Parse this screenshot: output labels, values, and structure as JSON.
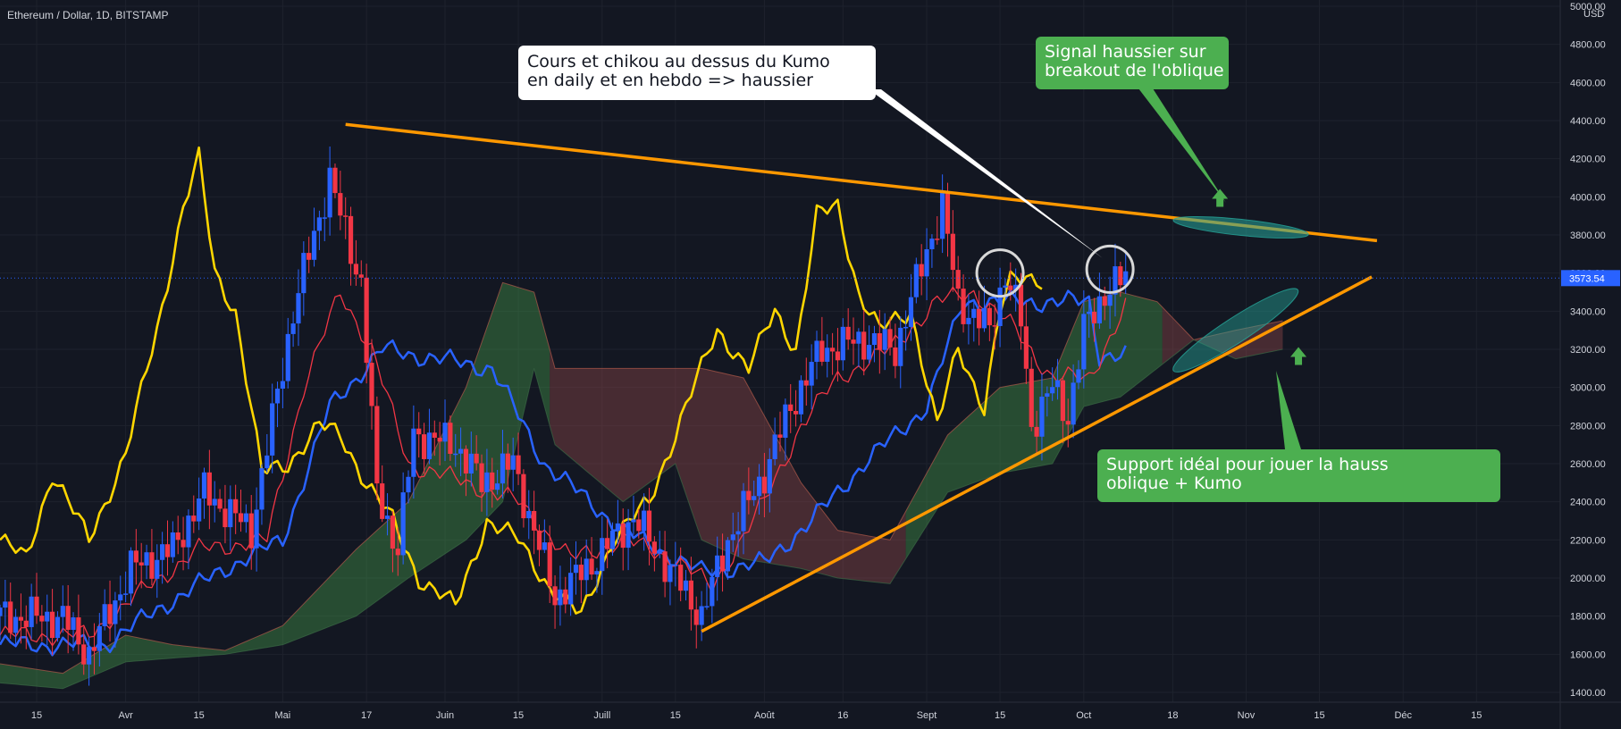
{
  "header": {
    "title": "Ethereum / Dollar, 1D, BITSTAMP"
  },
  "annotations": {
    "kumo_note": {
      "line1": "Cours et chikou au dessus du Kumo",
      "line2": "en daily et en hebdo => haussier"
    },
    "signal_note": {
      "line1": "Signal haussier sur",
      "line2": "breakout de l'oblique"
    },
    "support_note": {
      "line1": "Support idéal pour jouer la hauss",
      "line2": "oblique + Kumo"
    }
  },
  "colors": {
    "background": "#131722",
    "grid": "#1e222d",
    "axis_text": "#d1d4dc",
    "candle_up": "#2962ff",
    "candle_down": "#f23645",
    "tenkan": "#f23645",
    "kijun": "#2962ff",
    "chikou": "#ffd600",
    "trendline": "#ff9800",
    "kumo_bull": "#4caf50",
    "kumo_bear": "#a85050",
    "note_green": "#4caf50",
    "price_tag": "#2962ff"
  },
  "chart_data": {
    "type": "candlestick",
    "title": "Ethereum / Dollar, 1D, BITSTAMP",
    "xlabel": "",
    "ylabel": "",
    "unit_label": "USD",
    "ylim": [
      1300,
      5000
    ],
    "grid": true,
    "y_ticks": [
      1400,
      1600,
      1800,
      2000,
      2200,
      2400,
      2600,
      2800,
      3000,
      3200,
      3400,
      3600,
      3800,
      4000,
      4200,
      4400,
      4600,
      4800,
      5000
    ],
    "y_tick_labels": [
      "1400.00",
      "1600.00",
      "1800.00",
      "2000.00",
      "2200.00",
      "2400.00",
      "2600.00",
      "2800.00",
      "3000.00",
      "3200.00",
      "3400.00",
      "3600.00",
      "3800.00",
      "4000.00",
      "4200.00",
      "4400.00",
      "4600.00",
      "4800.00",
      "5000.00"
    ],
    "x_range": [
      "2021-03-08",
      "2021-12-31"
    ],
    "x_ticks": [
      {
        "date": "2021-03-15",
        "label": "15"
      },
      {
        "date": "2021-04-01",
        "label": "Avr"
      },
      {
        "date": "2021-04-15",
        "label": "15"
      },
      {
        "date": "2021-05-01",
        "label": "Mai"
      },
      {
        "date": "2021-05-17",
        "label": "17"
      },
      {
        "date": "2021-06-01",
        "label": "Juin"
      },
      {
        "date": "2021-06-15",
        "label": "15"
      },
      {
        "date": "2021-07-01",
        "label": "Juill"
      },
      {
        "date": "2021-07-15",
        "label": "15"
      },
      {
        "date": "2021-08-01",
        "label": "Août"
      },
      {
        "date": "2021-08-16",
        "label": "16"
      },
      {
        "date": "2021-09-01",
        "label": "Sept"
      },
      {
        "date": "2021-09-15",
        "label": "15"
      },
      {
        "date": "2021-10-01",
        "label": "Oct"
      },
      {
        "date": "2021-10-18",
        "label": "18"
      },
      {
        "date": "2021-11-01",
        "label": "Nov"
      },
      {
        "date": "2021-11-15",
        "label": "15"
      },
      {
        "date": "2021-12-01",
        "label": "Déc"
      },
      {
        "date": "2021-12-15",
        "label": "15"
      }
    ],
    "last_price": 3573.54,
    "last_price_label": "3573.54",
    "price_anchors": [
      {
        "date": "2021-03-08",
        "close": 1800
      },
      {
        "date": "2021-03-20",
        "close": 1790
      },
      {
        "date": "2021-03-25",
        "close": 1600
      },
      {
        "date": "2021-04-02",
        "close": 2050
      },
      {
        "date": "2021-04-10",
        "close": 2150
      },
      {
        "date": "2021-04-16",
        "close": 2450
      },
      {
        "date": "2021-04-25",
        "close": 2250
      },
      {
        "date": "2021-05-03",
        "close": 3400
      },
      {
        "date": "2021-05-10",
        "close": 4100
      },
      {
        "date": "2021-05-12",
        "close": 3900
      },
      {
        "date": "2021-05-16",
        "close": 3550
      },
      {
        "date": "2021-05-19",
        "close": 2450
      },
      {
        "date": "2021-05-23",
        "close": 2150
      },
      {
        "date": "2021-05-26",
        "close": 2750
      },
      {
        "date": "2021-06-03",
        "close": 2700
      },
      {
        "date": "2021-06-08",
        "close": 2500
      },
      {
        "date": "2021-06-14",
        "close": 2600
      },
      {
        "date": "2021-06-22",
        "close": 1900
      },
      {
        "date": "2021-06-28",
        "close": 2050
      },
      {
        "date": "2021-07-07",
        "close": 2320
      },
      {
        "date": "2021-07-15",
        "close": 2000
      },
      {
        "date": "2021-07-20",
        "close": 1800
      },
      {
        "date": "2021-07-25",
        "close": 2200
      },
      {
        "date": "2021-08-01",
        "close": 2550
      },
      {
        "date": "2021-08-06",
        "close": 2900
      },
      {
        "date": "2021-08-12",
        "close": 3200
      },
      {
        "date": "2021-08-20",
        "close": 3250
      },
      {
        "date": "2021-08-26",
        "close": 3200
      },
      {
        "date": "2021-09-02",
        "close": 3800
      },
      {
        "date": "2021-09-04",
        "close": 3950
      },
      {
        "date": "2021-09-07",
        "close": 3450
      },
      {
        "date": "2021-09-13",
        "close": 3300
      },
      {
        "date": "2021-09-16",
        "close": 3600
      },
      {
        "date": "2021-09-19",
        "close": 3350
      },
      {
        "date": "2021-09-21",
        "close": 2800
      },
      {
        "date": "2021-09-25",
        "close": 3000
      },
      {
        "date": "2021-09-28",
        "close": 2850
      },
      {
        "date": "2021-10-01",
        "close": 3300
      },
      {
        "date": "2021-10-05",
        "close": 3500
      },
      {
        "date": "2021-10-09",
        "close": 3574
      }
    ],
    "chikou_anchors": [
      {
        "date": "2021-03-08",
        "v": 2200
      },
      {
        "date": "2021-03-13",
        "v": 2100
      },
      {
        "date": "2021-03-18",
        "v": 2550
      },
      {
        "date": "2021-03-25",
        "v": 2200
      },
      {
        "date": "2021-04-01",
        "v": 2650
      },
      {
        "date": "2021-04-07",
        "v": 3300
      },
      {
        "date": "2021-04-12",
        "v": 3950
      },
      {
        "date": "2021-04-15",
        "v": 4200
      },
      {
        "date": "2021-04-18",
        "v": 3600
      },
      {
        "date": "2021-04-22",
        "v": 3400
      },
      {
        "date": "2021-04-27",
        "v": 2550
      },
      {
        "date": "2021-05-02",
        "v": 2600
      },
      {
        "date": "2021-05-08",
        "v": 2800
      },
      {
        "date": "2021-05-12",
        "v": 2750
      },
      {
        "date": "2021-05-17",
        "v": 2500
      },
      {
        "date": "2021-05-22",
        "v": 2300
      },
      {
        "date": "2021-05-27",
        "v": 2000
      },
      {
        "date": "2021-06-03",
        "v": 1850
      },
      {
        "date": "2021-06-09",
        "v": 2300
      },
      {
        "date": "2021-06-15",
        "v": 2200
      },
      {
        "date": "2021-06-21",
        "v": 1950
      },
      {
        "date": "2021-06-27",
        "v": 1800
      },
      {
        "date": "2021-07-03",
        "v": 2200
      },
      {
        "date": "2021-07-10",
        "v": 2400
      },
      {
        "date": "2021-07-17",
        "v": 2900
      },
      {
        "date": "2021-07-23",
        "v": 3300
      },
      {
        "date": "2021-07-29",
        "v": 3100
      },
      {
        "date": "2021-08-03",
        "v": 3400
      },
      {
        "date": "2021-08-07",
        "v": 3200
      },
      {
        "date": "2021-08-11",
        "v": 3900
      },
      {
        "date": "2021-08-15",
        "v": 3950
      },
      {
        "date": "2021-08-19",
        "v": 3500
      },
      {
        "date": "2021-08-23",
        "v": 3300
      },
      {
        "date": "2021-08-29",
        "v": 3400
      },
      {
        "date": "2021-09-03",
        "v": 2800
      },
      {
        "date": "2021-09-07",
        "v": 3200
      },
      {
        "date": "2021-09-12",
        "v": 2900
      },
      {
        "date": "2021-09-15",
        "v": 3400
      },
      {
        "date": "2021-09-17",
        "v": 3550
      },
      {
        "date": "2021-09-20",
        "v": 3580
      },
      {
        "date": "2021-09-23",
        "v": 3570
      }
    ],
    "tenkan_anchors": [
      {
        "date": "2021-03-08",
        "v": 1700
      },
      {
        "date": "2021-03-25",
        "v": 1700
      },
      {
        "date": "2021-04-05",
        "v": 1950
      },
      {
        "date": "2021-04-15",
        "v": 2150
      },
      {
        "date": "2021-04-28",
        "v": 2200
      },
      {
        "date": "2021-05-05",
        "v": 3000
      },
      {
        "date": "2021-05-12",
        "v": 3500
      },
      {
        "date": "2021-05-18",
        "v": 3200
      },
      {
        "date": "2021-05-25",
        "v": 2600
      },
      {
        "date": "2021-06-05",
        "v": 2500
      },
      {
        "date": "2021-06-15",
        "v": 2400
      },
      {
        "date": "2021-06-25",
        "v": 2100
      },
      {
        "date": "2021-07-05",
        "v": 2200
      },
      {
        "date": "2021-07-15",
        "v": 2100
      },
      {
        "date": "2021-07-22",
        "v": 1950
      },
      {
        "date": "2021-08-01",
        "v": 2400
      },
      {
        "date": "2021-08-08",
        "v": 2800
      },
      {
        "date": "2021-08-15",
        "v": 3050
      },
      {
        "date": "2021-08-25",
        "v": 3200
      },
      {
        "date": "2021-09-03",
        "v": 3450
      },
      {
        "date": "2021-09-10",
        "v": 3500
      },
      {
        "date": "2021-09-18",
        "v": 3300
      },
      {
        "date": "2021-09-25",
        "v": 3050
      },
      {
        "date": "2021-10-02",
        "v": 3050
      },
      {
        "date": "2021-10-09",
        "v": 3420
      }
    ],
    "kijun_anchors": [
      {
        "date": "2021-03-08",
        "v": 1650
      },
      {
        "date": "2021-03-28",
        "v": 1650
      },
      {
        "date": "2021-04-08",
        "v": 1850
      },
      {
        "date": "2021-04-20",
        "v": 2050
      },
      {
        "date": "2021-05-01",
        "v": 2200
      },
      {
        "date": "2021-05-10",
        "v": 2900
      },
      {
        "date": "2021-05-20",
        "v": 3200
      },
      {
        "date": "2021-06-10",
        "v": 3100
      },
      {
        "date": "2021-06-20",
        "v": 2600
      },
      {
        "date": "2021-07-05",
        "v": 2250
      },
      {
        "date": "2021-07-20",
        "v": 2030
      },
      {
        "date": "2021-08-01",
        "v": 2080
      },
      {
        "date": "2021-08-10",
        "v": 2300
      },
      {
        "date": "2021-08-20",
        "v": 2600
      },
      {
        "date": "2021-09-01",
        "v": 2900
      },
      {
        "date": "2021-09-08",
        "v": 3450
      },
      {
        "date": "2021-09-22",
        "v": 3450
      },
      {
        "date": "2021-10-02",
        "v": 3450
      },
      {
        "date": "2021-10-04",
        "v": 3170
      },
      {
        "date": "2021-10-09",
        "v": 3170
      }
    ],
    "kumo_top_anchors": [
      {
        "date": "2021-03-08",
        "v": 1550
      },
      {
        "date": "2021-03-20",
        "v": 1500
      },
      {
        "date": "2021-04-01",
        "v": 1700
      },
      {
        "date": "2021-04-10",
        "v": 1650
      },
      {
        "date": "2021-04-20",
        "v": 1620
      },
      {
        "date": "2021-05-01",
        "v": 1750
      },
      {
        "date": "2021-05-15",
        "v": 2150
      },
      {
        "date": "2021-05-25",
        "v": 2400
      },
      {
        "date": "2021-06-05",
        "v": 3000
      },
      {
        "date": "2021-06-12",
        "v": 3550
      },
      {
        "date": "2021-06-18",
        "v": 3500
      },
      {
        "date": "2021-06-22",
        "v": 3100
      },
      {
        "date": "2021-07-05",
        "v": 3100
      },
      {
        "date": "2021-07-20",
        "v": 3100
      },
      {
        "date": "2021-07-28",
        "v": 3050
      },
      {
        "date": "2021-08-08",
        "v": 2500
      },
      {
        "date": "2021-08-15",
        "v": 2250
      },
      {
        "date": "2021-08-25",
        "v": 2200
      },
      {
        "date": "2021-09-05",
        "v": 2750
      },
      {
        "date": "2021-09-15",
        "v": 3000
      },
      {
        "date": "2021-09-25",
        "v": 3050
      },
      {
        "date": "2021-10-01",
        "v": 3450
      },
      {
        "date": "2021-10-08",
        "v": 3500
      },
      {
        "date": "2021-10-15",
        "v": 3450
      },
      {
        "date": "2021-10-22",
        "v": 3250
      },
      {
        "date": "2021-10-30",
        "v": 3300
      },
      {
        "date": "2021-11-08",
        "v": 3350
      }
    ],
    "kumo_bottom_anchors": [
      {
        "date": "2021-03-08",
        "v": 1450
      },
      {
        "date": "2021-03-20",
        "v": 1420
      },
      {
        "date": "2021-04-01",
        "v": 1560
      },
      {
        "date": "2021-04-10",
        "v": 1580
      },
      {
        "date": "2021-04-20",
        "v": 1600
      },
      {
        "date": "2021-05-01",
        "v": 1650
      },
      {
        "date": "2021-05-15",
        "v": 1800
      },
      {
        "date": "2021-05-25",
        "v": 2000
      },
      {
        "date": "2021-06-05",
        "v": 2200
      },
      {
        "date": "2021-06-12",
        "v": 2400
      },
      {
        "date": "2021-06-18",
        "v": 3100
      },
      {
        "date": "2021-06-22",
        "v": 2700
      },
      {
        "date": "2021-07-05",
        "v": 2400
      },
      {
        "date": "2021-07-15",
        "v": 2600
      },
      {
        "date": "2021-07-20",
        "v": 2200
      },
      {
        "date": "2021-07-28",
        "v": 2100
      },
      {
        "date": "2021-08-08",
        "v": 2050
      },
      {
        "date": "2021-08-15",
        "v": 2000
      },
      {
        "date": "2021-08-25",
        "v": 1970
      },
      {
        "date": "2021-09-05",
        "v": 2450
      },
      {
        "date": "2021-09-15",
        "v": 2550
      },
      {
        "date": "2021-09-25",
        "v": 2600
      },
      {
        "date": "2021-10-01",
        "v": 2900
      },
      {
        "date": "2021-10-08",
        "v": 2950
      },
      {
        "date": "2021-10-15",
        "v": 3100
      },
      {
        "date": "2021-10-22",
        "v": 3250
      },
      {
        "date": "2021-10-30",
        "v": 3150
      },
      {
        "date": "2021-11-08",
        "v": 3200
      }
    ],
    "kumo_color_changes": [
      {
        "from": "2021-03-08",
        "to": "2021-06-21",
        "sentiment": "bull"
      },
      {
        "from": "2021-06-21",
        "to": "2021-08-28",
        "sentiment": "bear"
      },
      {
        "from": "2021-08-28",
        "to": "2021-10-16",
        "sentiment": "bull"
      },
      {
        "from": "2021-10-16",
        "to": "2021-11-08",
        "sentiment": "bear"
      }
    ],
    "trendlines": [
      {
        "name": "oblique_resistance",
        "points": [
          {
            "date": "2021-05-13",
            "v": 4380
          },
          {
            "date": "2021-11-26",
            "v": 3770
          }
        ]
      },
      {
        "name": "oblique_support",
        "points": [
          {
            "date": "2021-07-20",
            "v": 1720
          },
          {
            "date": "2021-11-25",
            "v": 3580
          }
        ]
      }
    ],
    "highlights": [
      {
        "shape": "circle",
        "center_date": "2021-09-15",
        "center_v": 3600
      },
      {
        "shape": "circle",
        "center_date": "2021-10-06",
        "center_v": 3620
      },
      {
        "shape": "ellipse",
        "center_date": "2021-10-31",
        "center_v": 3840
      },
      {
        "shape": "ellipse",
        "center_date": "2021-10-30",
        "center_v": 3300
      }
    ],
    "arrows_up": [
      {
        "date": "2021-10-27",
        "v": 3990
      },
      {
        "date": "2021-11-11",
        "v": 3160
      }
    ]
  }
}
